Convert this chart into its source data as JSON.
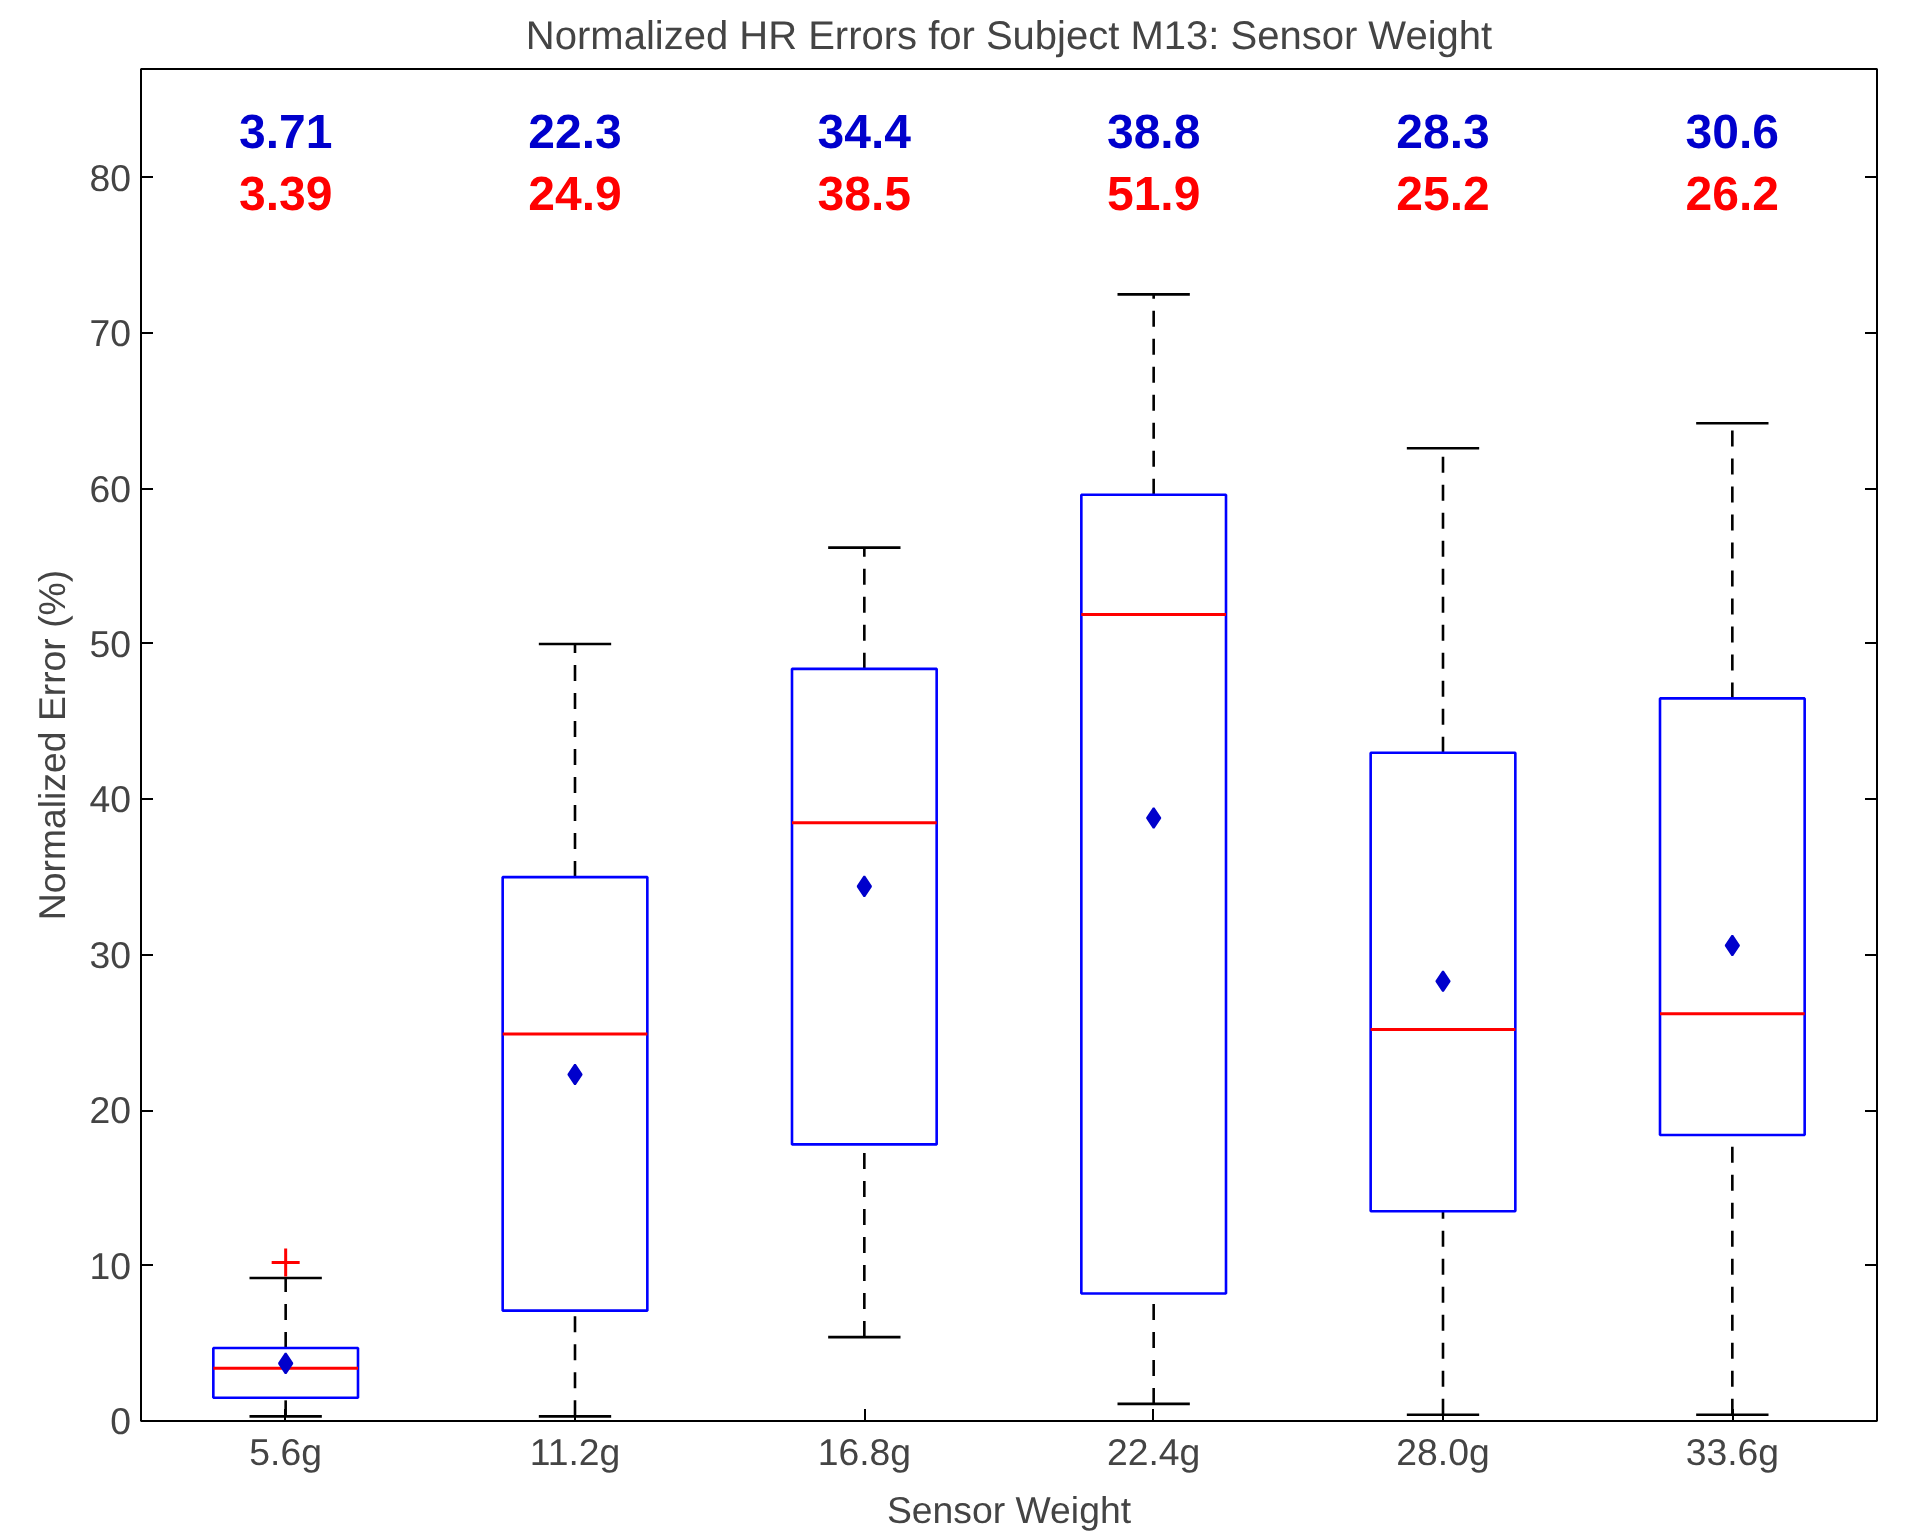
{
  "chart_data": {
    "type": "box",
    "title": "Normalized HR Errors for Subject M13: Sensor Weight",
    "xlabel": "Sensor Weight",
    "ylabel": "Normalized Error (%)",
    "categories": [
      "5.6g",
      "11.2g",
      "16.8g",
      "22.4g",
      "28.0g",
      "33.6g"
    ],
    "ylim": [
      0,
      87
    ],
    "yticks": [
      0,
      10,
      20,
      30,
      40,
      50,
      60,
      70,
      80
    ],
    "grid": false,
    "series": [
      {
        "color": "#0000ff",
        "boxes": [
          {
            "low": 0.3,
            "q1": 1.5,
            "median": 3.39,
            "q3": 4.7,
            "high": 9.2,
            "mean": 3.71,
            "outliers": [
              10.2
            ]
          },
          {
            "low": 0.3,
            "q1": 7.1,
            "median": 24.9,
            "q3": 35.0,
            "high": 50.0,
            "mean": 22.3
          },
          {
            "low": 5.4,
            "q1": 17.8,
            "median": 38.5,
            "q3": 48.4,
            "high": 56.2,
            "mean": 34.4
          },
          {
            "low": 1.1,
            "q1": 8.2,
            "median": 51.9,
            "q3": 59.6,
            "high": 72.5,
            "mean": 38.8
          },
          {
            "low": 0.4,
            "q1": 13.5,
            "median": 25.2,
            "q3": 43.0,
            "high": 62.6,
            "mean": 28.3
          },
          {
            "low": 0.4,
            "q1": 18.4,
            "median": 26.2,
            "q3": 46.5,
            "high": 64.2,
            "mean": 30.6
          }
        ]
      }
    ],
    "annotations": [
      "3.71",
      "22.3",
      "34.4",
      "38.8",
      "28.3",
      "30.6",
      "3.39",
      "24.9",
      "38.5",
      "51.9",
      "25.2",
      "26.2"
    ]
  }
}
